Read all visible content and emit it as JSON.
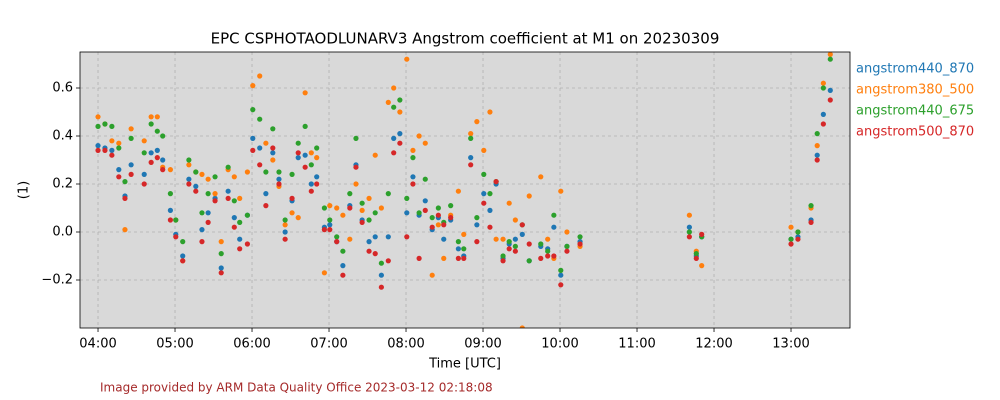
{
  "chart_data": {
    "type": "scatter",
    "title": "EPC CSPHOTAODLUNARV3 Angstrom coefficient at M1 on 20230309",
    "x_label": "Time [UTC]",
    "y_label": "(1)",
    "annotation": "Image provided by ARM Data Quality Office 2023-03-12 02:18:08",
    "x": [
      4.0,
      4.09,
      4.18,
      4.27,
      4.35,
      4.43,
      4.6,
      4.69,
      4.77,
      4.84,
      4.94,
      5.01,
      5.1,
      5.18,
      5.27,
      5.35,
      5.43,
      5.52,
      5.6,
      5.69,
      5.77,
      5.84,
      5.94,
      6.01,
      6.1,
      6.18,
      6.27,
      6.35,
      6.43,
      6.52,
      6.6,
      6.69,
      6.77,
      6.84,
      6.94,
      7.01,
      7.1,
      7.18,
      7.27,
      7.35,
      7.43,
      7.52,
      7.6,
      7.68,
      7.77,
      7.84,
      7.92,
      8.01,
      8.09,
      8.17,
      8.25,
      8.34,
      8.42,
      8.49,
      8.58,
      8.68,
      8.75,
      8.84,
      8.92,
      9.01,
      9.09,
      9.17,
      9.26,
      9.34,
      9.42,
      9.51,
      9.6,
      9.75,
      9.84,
      9.92,
      10.01,
      10.09,
      10.26,
      11.68,
      11.77,
      11.84,
      13.0,
      13.09,
      13.26,
      13.34,
      13.42,
      13.51
    ],
    "series": [
      {
        "name": "angstrom440_870",
        "color": "#1f77b4",
        "values": [
          0.36,
          0.35,
          0.34,
          0.26,
          0.15,
          0.28,
          0.24,
          0.33,
          0.34,
          0.3,
          0.09,
          -0.01,
          -0.1,
          0.22,
          0.19,
          0.01,
          0.08,
          0.14,
          -0.15,
          0.17,
          0.06,
          -0.03,
          0.07,
          0.39,
          0.35,
          0.16,
          0.33,
          0.22,
          0.0,
          0.13,
          0.31,
          0.32,
          0.2,
          0.23,
          0.02,
          0.03,
          -0.04,
          -0.14,
          0.11,
          0.28,
          0.05,
          -0.04,
          -0.02,
          -0.18,
          -0.02,
          0.39,
          0.41,
          0.08,
          0.23,
          0.07,
          0.13,
          0.01,
          0.06,
          -0.03,
          0.05,
          -0.07,
          -0.1,
          0.31,
          0.03,
          0.16,
          0.09,
          0.2,
          -0.11,
          -0.05,
          -0.03,
          -0.01,
          -0.12,
          -0.06,
          -0.07,
          0.02,
          -0.18,
          -0.06,
          -0.04,
          0.02,
          -0.1,
          -0.02,
          -0.03,
          -0.02,
          0.05,
          0.32,
          0.49,
          0.59
        ]
      },
      {
        "name": "angstrom380_500",
        "color": "#ff7f0e",
        "values": [
          0.48,
          0.45,
          0.38,
          0.37,
          0.01,
          0.43,
          0.38,
          0.48,
          0.48,
          0.27,
          0.26,
          0.05,
          -0.12,
          0.28,
          0.25,
          0.24,
          0.22,
          0.16,
          -0.04,
          0.26,
          0.23,
          0.14,
          0.25,
          0.61,
          0.65,
          0.37,
          0.3,
          0.19,
          0.03,
          0.08,
          0.06,
          0.58,
          0.33,
          0.31,
          -0.17,
          0.11,
          0.1,
          0.07,
          -0.03,
          0.2,
          0.09,
          0.14,
          0.32,
          0.1,
          0.54,
          0.6,
          0.5,
          0.72,
          0.34,
          0.4,
          0.37,
          -0.18,
          0.03,
          -0.11,
          0.07,
          0.17,
          -0.01,
          0.41,
          0.46,
          0.34,
          0.5,
          -0.03,
          -0.03,
          0.12,
          0.05,
          -0.4,
          0.15,
          0.23,
          -0.03,
          -0.11,
          0.17,
          0.0,
          -0.06,
          0.07,
          -0.08,
          -0.14,
          0.02,
          0.0,
          0.1,
          0.36,
          0.62,
          0.74
        ]
      },
      {
        "name": "angstrom440_675",
        "color": "#2ca02c",
        "values": [
          0.44,
          0.45,
          0.44,
          0.35,
          0.21,
          0.39,
          0.33,
          0.45,
          0.42,
          0.4,
          0.16,
          0.05,
          -0.04,
          0.3,
          0.25,
          0.08,
          0.16,
          0.23,
          -0.09,
          0.27,
          0.13,
          0.04,
          0.07,
          0.51,
          0.47,
          0.25,
          0.43,
          0.25,
          0.05,
          0.24,
          0.37,
          0.44,
          0.28,
          0.35,
          0.1,
          0.05,
          -0.02,
          -0.08,
          0.16,
          0.39,
          0.12,
          0.05,
          0.08,
          -0.13,
          0.16,
          0.52,
          0.55,
          0.14,
          0.31,
          0.08,
          0.22,
          0.06,
          0.1,
          0.04,
          0.11,
          -0.04,
          -0.07,
          0.39,
          0.06,
          0.24,
          0.16,
          0.21,
          -0.1,
          -0.04,
          -0.06,
          0.03,
          -0.12,
          -0.05,
          -0.08,
          0.07,
          -0.16,
          -0.06,
          -0.02,
          0.0,
          -0.09,
          -0.02,
          -0.03,
          0.0,
          0.11,
          0.41,
          0.6,
          0.72
        ]
      },
      {
        "name": "angstrom500_870",
        "color": "#d62728",
        "values": [
          0.34,
          0.34,
          0.32,
          0.23,
          0.14,
          0.24,
          0.2,
          0.29,
          0.31,
          0.26,
          0.05,
          -0.02,
          -0.12,
          0.2,
          0.17,
          -0.04,
          0.04,
          0.13,
          -0.17,
          0.14,
          0.02,
          -0.07,
          -0.05,
          0.34,
          0.28,
          0.11,
          0.35,
          0.2,
          -0.03,
          0.14,
          0.33,
          0.27,
          0.17,
          0.2,
          0.01,
          0.01,
          -0.04,
          -0.18,
          0.1,
          0.27,
          0.04,
          -0.08,
          -0.09,
          -0.23,
          -0.12,
          0.33,
          0.37,
          -0.02,
          0.2,
          -0.11,
          0.09,
          0.02,
          0.07,
          0.03,
          0.06,
          -0.11,
          -0.11,
          0.28,
          -0.04,
          0.12,
          0.02,
          0.21,
          -0.12,
          -0.07,
          -0.08,
          0.03,
          -0.05,
          -0.11,
          -0.1,
          -0.1,
          -0.22,
          -0.08,
          -0.05,
          -0.02,
          -0.11,
          -0.01,
          -0.05,
          -0.03,
          0.04,
          0.3,
          0.45,
          0.55
        ]
      }
    ],
    "xlim": [
      3.766,
      13.766
    ],
    "xticks": [
      {
        "value": 4,
        "label": "04:00"
      },
      {
        "value": 5,
        "label": "05:00"
      },
      {
        "value": 6,
        "label": "06:00"
      },
      {
        "value": 7,
        "label": "07:00"
      },
      {
        "value": 8,
        "label": "08:00"
      },
      {
        "value": 9,
        "label": "09:00"
      },
      {
        "value": 10,
        "label": "10:00"
      },
      {
        "value": 11,
        "label": "11:00"
      },
      {
        "value": 12,
        "label": "12:00"
      },
      {
        "value": 13,
        "label": "13:00"
      }
    ],
    "ylim": [
      -0.4,
      0.75
    ],
    "yticks": [
      {
        "value": -0.2,
        "label": "−0.2"
      },
      {
        "value": 0,
        "label": "0.0"
      },
      0.2,
      0.4,
      0.6
    ],
    "grid": true,
    "legend": "outside-right",
    "background": "#d9d9d9"
  }
}
